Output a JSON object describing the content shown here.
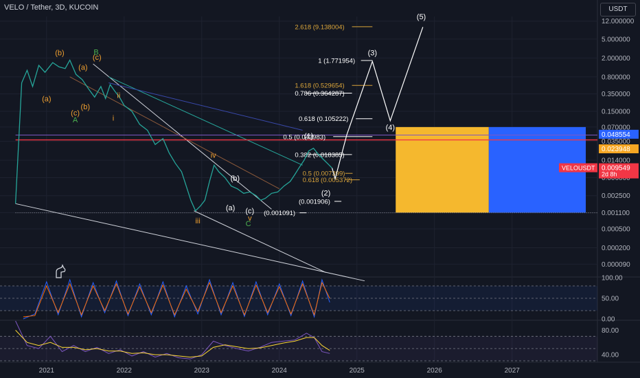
{
  "header": {
    "symbol": "VELO / Tether, 3D, KUCOIN",
    "currency": "USDT"
  },
  "colors": {
    "bg": "#131722",
    "grid": "#1e2230",
    "axis_text": "#b2b5be",
    "white": "#ffffff",
    "orange": "#f0a030",
    "green": "#4caf50",
    "red": "#f23645",
    "blue": "#2962ff",
    "yellow_box": "#f5b82e",
    "fib": "#d9a43a"
  },
  "chart_data": [
    {
      "type": "line",
      "title": "VELO / Tether, 3D, KUCOIN",
      "yscale": "log",
      "ylim": [
        5e-05,
        15
      ],
      "xlim": [
        2020.4,
        2028.1
      ],
      "x_ticks": [
        "2021",
        "2022",
        "2023",
        "2024",
        "2025",
        "2026",
        "2027"
      ],
      "y_ticks": [
        "12.000000",
        "5.000000",
        "2.000000",
        "0.800000",
        "0.350000",
        "0.150000",
        "0.070000",
        "0.035000",
        "0.014000",
        "0.006000",
        "0.002500",
        "0.001100",
        "0.000500",
        "0.000200",
        "0.000090"
      ],
      "price_labels": [
        {
          "label": "",
          "value": 0.048554,
          "text": "0.048554",
          "color": "#2962ff"
        },
        {
          "label": "",
          "value": 0.023948,
          "text": "0.023948",
          "color": "#f5a623"
        },
        {
          "label": "VELOUSDT",
          "value": 0.009549,
          "text": "0.009549",
          "sub": "2d 8h",
          "color": "#f23645"
        }
      ],
      "series": [
        {
          "values": [
            [
              2020.6,
              0.0017
            ],
            [
              2020.68,
              0.6
            ],
            [
              2020.75,
              1.1
            ],
            [
              2020.82,
              0.5
            ],
            [
              2020.9,
              1.4
            ],
            [
              2020.98,
              1.0
            ],
            [
              2021.08,
              1.6
            ],
            [
              2021.16,
              1.3
            ],
            [
              2021.24,
              1.2
            ],
            [
              2021.3,
              1.8
            ],
            [
              2021.38,
              0.9
            ],
            [
              2021.46,
              0.7
            ],
            [
              2021.54,
              0.45
            ],
            [
              2021.62,
              0.3
            ],
            [
              2021.7,
              0.5
            ],
            [
              2021.76,
              0.28
            ],
            [
              2021.82,
              0.55
            ],
            [
              2021.88,
              0.4
            ],
            [
              2021.94,
              0.3
            ],
            [
              2022.0,
              0.2
            ],
            [
              2022.1,
              0.15
            ],
            [
              2022.2,
              0.08
            ],
            [
              2022.3,
              0.06
            ],
            [
              2022.4,
              0.03
            ],
            [
              2022.5,
              0.04
            ],
            [
              2022.58,
              0.02
            ],
            [
              2022.66,
              0.012
            ],
            [
              2022.74,
              0.008
            ],
            [
              2022.8,
              0.004
            ],
            [
              2022.86,
              0.002
            ],
            [
              2022.92,
              0.0012
            ],
            [
              2022.98,
              0.0015
            ],
            [
              2023.04,
              0.002
            ],
            [
              2023.1,
              0.005
            ],
            [
              2023.16,
              0.011
            ],
            [
              2023.22,
              0.008
            ],
            [
              2023.3,
              0.006
            ],
            [
              2023.38,
              0.004
            ],
            [
              2023.46,
              0.0035
            ],
            [
              2023.54,
              0.0028
            ],
            [
              2023.62,
              0.003
            ],
            [
              2023.7,
              0.0025
            ],
            [
              2023.76,
              0.002
            ],
            [
              2023.82,
              0.0022
            ],
            [
              2023.9,
              0.0028
            ],
            [
              2023.98,
              0.003
            ],
            [
              2024.06,
              0.004
            ],
            [
              2024.14,
              0.005
            ],
            [
              2024.2,
              0.007
            ],
            [
              2024.26,
              0.01
            ],
            [
              2024.32,
              0.014
            ],
            [
              2024.38,
              0.022
            ],
            [
              2024.44,
              0.025
            ],
            [
              2024.5,
              0.019
            ],
            [
              2024.56,
              0.015
            ],
            [
              2024.62,
              0.012
            ],
            [
              2024.68,
              0.009549
            ]
          ]
        },
        {
          "values": [
            [
              2024.68,
              0.009549
            ],
            [
              2024.72,
              0.0057
            ],
            [
              2024.87,
              0.048554
            ],
            [
              2025.2,
              1.7
            ],
            [
              2025.43,
              0.095
            ],
            [
              2025.85,
              9.0
            ]
          ]
        }
      ],
      "annotations": {
        "fib": [
          {
            "text": "2.618 (9.138004)",
            "y": 9.138,
            "x1": 2024.2,
            "x2": 2025.2,
            "color": "#d9a43a"
          },
          {
            "text": "1 (1.771954)",
            "y": 1.772,
            "x1": 2024.5,
            "x2": 2025.2,
            "color": "#ffffff"
          },
          {
            "text": "1.618 (0.529654)",
            "y": 0.53,
            "x1": 2024.2,
            "x2": 2025.2,
            "color": "#d9a43a"
          },
          {
            "text": "0.786 (0.364287)",
            "y": 0.364,
            "x1": 2024.2,
            "x2": 2024.35,
            "color": "#ffffff"
          },
          {
            "text": "0.618 (0.105222)",
            "y": 0.105,
            "x1": 2024.25,
            "x2": 2025.2,
            "color": "#ffffff"
          },
          {
            "text": "0.5 (0.043983)",
            "y": 0.044,
            "x1": 2024.05,
            "x2": 2025.2,
            "color": "#ffffff"
          },
          {
            "text": "0.382 (0.018385)",
            "y": 0.0184,
            "x1": 2024.2,
            "x2": 2024.35,
            "color": "#ffffff"
          },
          {
            "text": "0.5 (0.007399)",
            "y": 0.0074,
            "x1": 2024.3,
            "x2": 2024.85,
            "color": "#d9a43a"
          },
          {
            "text": "0.618 (0.005372)",
            "y": 0.0054,
            "x1": 2024.3,
            "x2": 2024.85,
            "color": "#d9a43a"
          },
          {
            "text": "(0.001906)",
            "y": 0.0019,
            "x1": 2024.25,
            "x2": 2024.8,
            "color": "#ffffff"
          },
          {
            "text": "(0.001091)",
            "y": 0.00109,
            "x1": 2023.8,
            "x2": 2024.35,
            "color": "#ffffff"
          }
        ],
        "waves": [
          {
            "text": "(5)",
            "x": 2025.83,
            "y": 15,
            "color": "#ffffff"
          },
          {
            "text": "(3)",
            "x": 2025.2,
            "y": 2.6,
            "color": "#ffffff"
          },
          {
            "text": "(4)",
            "x": 2025.43,
            "y": 0.07,
            "color": "#ffffff"
          },
          {
            "text": "(1)",
            "x": 2024.38,
            "y": 0.046,
            "color": "#ffffff"
          },
          {
            "text": "(2)",
            "x": 2024.6,
            "y": 0.0029,
            "color": "#ffffff"
          },
          {
            "text": "(b)",
            "x": 2021.17,
            "y": 2.6,
            "color": "#f0a030"
          },
          {
            "text": "(c)",
            "x": 2021.65,
            "y": 2.1,
            "color": "#f0a030"
          },
          {
            "text": "B",
            "x": 2021.64,
            "y": 2.7,
            "color": "#4caf50"
          },
          {
            "text": "(a)",
            "x": 2021.47,
            "y": 1.3,
            "color": "#f0a030"
          },
          {
            "text": "(a)",
            "x": 2021.0,
            "y": 0.28,
            "color": "#f0a030"
          },
          {
            "text": "(b)",
            "x": 2021.5,
            "y": 0.19,
            "color": "#f0a030"
          },
          {
            "text": "(c)",
            "x": 2021.37,
            "y": 0.14,
            "color": "#f0a030"
          },
          {
            "text": "A",
            "x": 2021.37,
            "y": 0.1,
            "color": "#4caf50"
          },
          {
            "text": "ii",
            "x": 2021.93,
            "y": 0.33,
            "color": "#f0a030"
          },
          {
            "text": "i",
            "x": 2021.86,
            "y": 0.11,
            "color": "#f0a030"
          },
          {
            "text": "iv",
            "x": 2023.15,
            "y": 0.018,
            "color": "#f0a030"
          },
          {
            "text": "iii",
            "x": 2022.95,
            "y": 0.00075,
            "color": "#f0a030"
          },
          {
            "text": "(b)",
            "x": 2023.43,
            "y": 0.0059,
            "color": "#ffffff"
          },
          {
            "text": "(a)",
            "x": 2023.37,
            "y": 0.0014,
            "color": "#ffffff"
          },
          {
            "text": "(c)",
            "x": 2023.62,
            "y": 0.0012,
            "color": "#ffffff"
          },
          {
            "text": "v",
            "x": 2023.62,
            "y": 0.00085,
            "color": "#f0a030"
          },
          {
            "text": "C",
            "x": 2023.6,
            "y": 0.00065,
            "color": "#4caf50"
          }
        ]
      },
      "zones": [
        {
          "from": 2025.5,
          "to": 2026.7,
          "y_low": 0.0011,
          "y_high": 0.07,
          "color": "#f5b82e"
        },
        {
          "from": 2026.7,
          "to": 2027.95,
          "y_low": 0.0011,
          "y_high": 0.07,
          "color": "#2962ff"
        }
      ]
    },
    {
      "type": "line",
      "title": "",
      "ylim": [
        0,
        100
      ],
      "y_ticks": [
        "100.00",
        "50.00",
        "0.00"
      ],
      "series": [
        {
          "values": [
            [
              2020.7,
              0
            ],
            [
              2020.85,
              12
            ],
            [
              2021.0,
              90
            ],
            [
              2021.15,
              10
            ],
            [
              2021.3,
              95
            ],
            [
              2021.45,
              5
            ],
            [
              2021.6,
              88
            ],
            [
              2021.75,
              15
            ],
            [
              2021.9,
              92
            ],
            [
              2022.05,
              8
            ],
            [
              2022.2,
              85
            ],
            [
              2022.35,
              10
            ],
            [
              2022.5,
              90
            ],
            [
              2022.65,
              5
            ],
            [
              2022.8,
              80
            ],
            [
              2022.95,
              12
            ],
            [
              2023.1,
              95
            ],
            [
              2023.25,
              10
            ],
            [
              2023.4,
              88
            ],
            [
              2023.55,
              6
            ],
            [
              2023.7,
              90
            ],
            [
              2023.85,
              10
            ],
            [
              2024.0,
              85
            ],
            [
              2024.15,
              8
            ],
            [
              2024.3,
              92
            ],
            [
              2024.45,
              5
            ],
            [
              2024.55,
              95
            ],
            [
              2024.65,
              40
            ]
          ]
        },
        {
          "values": [
            [
              2020.7,
              5
            ],
            [
              2020.85,
              8
            ],
            [
              2021.0,
              80
            ],
            [
              2021.15,
              15
            ],
            [
              2021.3,
              85
            ],
            [
              2021.45,
              10
            ],
            [
              2021.6,
              80
            ],
            [
              2021.75,
              20
            ],
            [
              2021.9,
              85
            ],
            [
              2022.05,
              12
            ],
            [
              2022.2,
              78
            ],
            [
              2022.35,
              15
            ],
            [
              2022.5,
              82
            ],
            [
              2022.65,
              10
            ],
            [
              2022.8,
              72
            ],
            [
              2022.95,
              18
            ],
            [
              2023.1,
              88
            ],
            [
              2023.25,
              15
            ],
            [
              2023.4,
              80
            ],
            [
              2023.55,
              10
            ],
            [
              2023.7,
              82
            ],
            [
              2023.85,
              15
            ],
            [
              2024.0,
              78
            ],
            [
              2024.15,
              12
            ],
            [
              2024.3,
              85
            ],
            [
              2024.45,
              10
            ],
            [
              2024.55,
              88
            ],
            [
              2024.65,
              50
            ]
          ]
        }
      ]
    },
    {
      "type": "line",
      "title": "",
      "ylim": [
        30,
        95
      ],
      "y_ticks": [
        "80.00",
        "40.00"
      ],
      "series": [
        {
          "values": [
            [
              2020.6,
              95
            ],
            [
              2020.75,
              55
            ],
            [
              2020.9,
              50
            ],
            [
              2021.05,
              70
            ],
            [
              2021.2,
              45
            ],
            [
              2021.35,
              55
            ],
            [
              2021.5,
              45
            ],
            [
              2021.65,
              52
            ],
            [
              2021.8,
              42
            ],
            [
              2021.95,
              48
            ],
            [
              2022.1,
              38
            ],
            [
              2022.25,
              45
            ],
            [
              2022.4,
              36
            ],
            [
              2022.55,
              42
            ],
            [
              2022.7,
              35
            ],
            [
              2022.85,
              33
            ],
            [
              2023.0,
              40
            ],
            [
              2023.15,
              62
            ],
            [
              2023.3,
              55
            ],
            [
              2023.45,
              50
            ],
            [
              2023.6,
              46
            ],
            [
              2023.75,
              52
            ],
            [
              2023.9,
              60
            ],
            [
              2024.05,
              62
            ],
            [
              2024.2,
              64
            ],
            [
              2024.35,
              75
            ],
            [
              2024.45,
              68
            ],
            [
              2024.55,
              45
            ],
            [
              2024.65,
              42
            ]
          ]
        },
        {
          "values": [
            [
              2020.6,
              80
            ],
            [
              2020.75,
              60
            ],
            [
              2020.9,
              55
            ],
            [
              2021.05,
              60
            ],
            [
              2021.2,
              52
            ],
            [
              2021.35,
              52
            ],
            [
              2021.5,
              48
            ],
            [
              2021.65,
              50
            ],
            [
              2021.8,
              46
            ],
            [
              2021.95,
              46
            ],
            [
              2022.1,
              42
            ],
            [
              2022.25,
              43
            ],
            [
              2022.4,
              40
            ],
            [
              2022.55,
              40
            ],
            [
              2022.7,
              38
            ],
            [
              2022.85,
              36
            ],
            [
              2023.0,
              38
            ],
            [
              2023.15,
              52
            ],
            [
              2023.3,
              56
            ],
            [
              2023.45,
              53
            ],
            [
              2023.6,
              50
            ],
            [
              2023.75,
              51
            ],
            [
              2023.9,
              55
            ],
            [
              2024.05,
              59
            ],
            [
              2024.2,
              62
            ],
            [
              2024.35,
              68
            ],
            [
              2024.45,
              68
            ],
            [
              2024.55,
              55
            ],
            [
              2024.65,
              47
            ]
          ]
        }
      ]
    }
  ]
}
